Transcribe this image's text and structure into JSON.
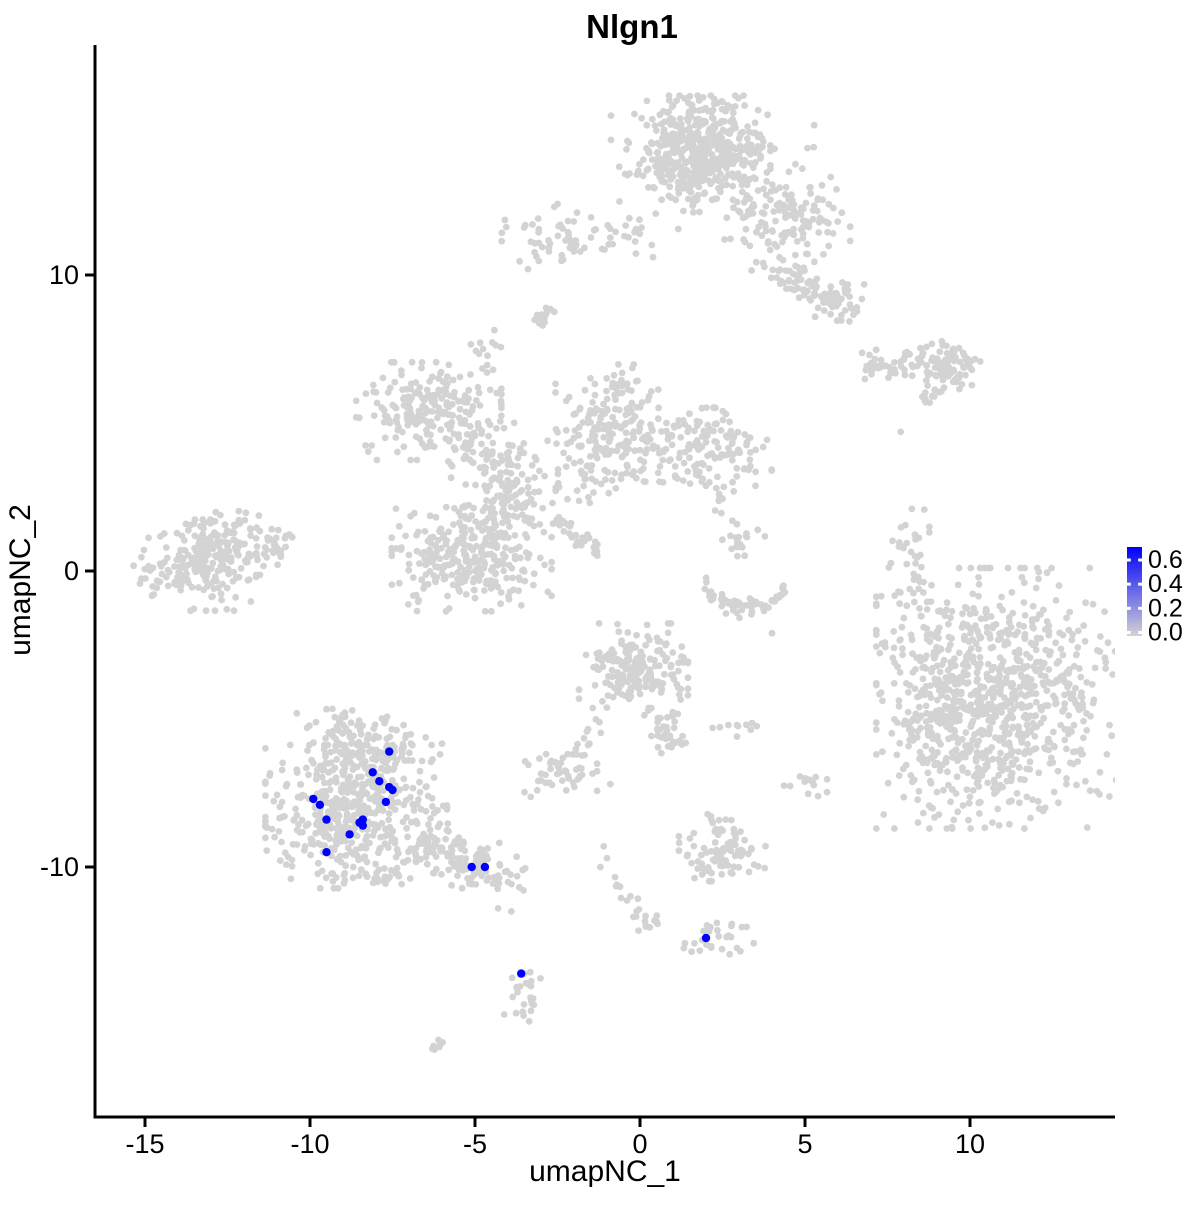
{
  "figure": {
    "title": "Nlgn1",
    "x_axis": {
      "label": "umapNC_1",
      "tick_values": [
        -15,
        -10,
        -5,
        0,
        5,
        10
      ],
      "tick_labels": [
        "-15",
        "-10",
        "-5",
        "0",
        "5",
        "10"
      ]
    },
    "y_axis": {
      "label": "umapNC_2",
      "tick_values": [
        10,
        0,
        -10
      ],
      "tick_labels": [
        "10",
        "0",
        "-10"
      ]
    },
    "legend": {
      "tick_values": [
        0.6,
        0.4,
        0.2,
        0.0
      ],
      "tick_labels": [
        "0.6",
        "0.4",
        "0.2",
        "0.0"
      ],
      "min": 0.0,
      "max": 0.6,
      "low_color": "#D3D3D3",
      "high_color": "#0000FF"
    }
  },
  "chart_data": {
    "type": "scatter",
    "title": "Nlgn1",
    "xlabel": "umapNC_1",
    "ylabel": "umapNC_2",
    "xlim": [
      -16.5,
      14.4
    ],
    "ylim": [
      -18.4,
      17.8
    ],
    "x_ticks": [
      -15,
      -10,
      -5,
      0,
      5,
      10
    ],
    "y_ticks": [
      -10,
      0,
      10
    ],
    "grid": false,
    "legend_position": "right",
    "legend_values": [
      0.6,
      0.4,
      0.2,
      0.0
    ],
    "point_color_low": "#D3D3D3",
    "point_color_high": "#0000FF",
    "seed": 42,
    "background_clusters": [
      {
        "shape": "gauss",
        "cx": 1.75,
        "cy": 14.3,
        "rx": 1.0,
        "ry": 0.8,
        "n": 430
      },
      {
        "shape": "gauss",
        "cx": 2.2,
        "cy": 13.4,
        "rx": 1.4,
        "ry": 1.0,
        "n": 130
      },
      {
        "shape": "gauss",
        "cx": 4.5,
        "cy": 11.8,
        "rx": 0.85,
        "ry": 0.75,
        "n": 115
      },
      {
        "shape": "line",
        "x1": 4.1,
        "y1": 10.3,
        "x2": 6.1,
        "y2": 8.9,
        "w": 0.35,
        "n": 65
      },
      {
        "shape": "gauss",
        "cx": 6.1,
        "cy": 9.1,
        "rx": 0.4,
        "ry": 0.35,
        "n": 30
      },
      {
        "shape": "gauss",
        "cx": -2.1,
        "cy": 11.3,
        "rx": 0.95,
        "ry": 0.5,
        "n": 65
      },
      {
        "shape": "gauss",
        "cx": 0.0,
        "cy": 11.1,
        "rx": 0.5,
        "ry": 0.3,
        "n": 8
      },
      {
        "shape": "line",
        "x1": -3.15,
        "y1": 8.35,
        "x2": -2.65,
        "y2": 8.85,
        "w": 0.12,
        "n": 18
      },
      {
        "shape": "gauss",
        "cx": -4.6,
        "cy": 7.3,
        "rx": 0.28,
        "ry": 0.38,
        "n": 14
      },
      {
        "shape": "gauss",
        "cx": 9.4,
        "cy": 7.0,
        "rx": 0.55,
        "ry": 0.4,
        "n": 85
      },
      {
        "shape": "line",
        "x1": 6.7,
        "y1": 6.9,
        "x2": 8.7,
        "y2": 7.15,
        "w": 0.22,
        "n": 45
      },
      {
        "shape": "line",
        "x1": 8.6,
        "y1": 5.65,
        "x2": 9.1,
        "y2": 6.15,
        "w": 0.12,
        "n": 12
      },
      {
        "shape": "dots",
        "pts": [
          [
            7.9,
            4.7
          ]
        ]
      },
      {
        "shape": "gauss",
        "cx": -6.4,
        "cy": 5.4,
        "rx": 1.0,
        "ry": 0.75,
        "n": 220
      },
      {
        "shape": "line",
        "x1": -5.4,
        "y1": 4.4,
        "x2": -3.9,
        "y2": 3.4,
        "w": 0.5,
        "n": 70
      },
      {
        "shape": "gauss",
        "cx": -4.1,
        "cy": 2.45,
        "rx": 0.55,
        "ry": 0.6,
        "n": 80
      },
      {
        "shape": "gauss",
        "cx": -5.1,
        "cy": 0.4,
        "rx": 1.1,
        "ry": 0.8,
        "n": 300
      },
      {
        "shape": "line",
        "x1": -2.6,
        "y1": 1.75,
        "x2": -1.2,
        "y2": 0.55,
        "w": 0.1,
        "n": 38
      },
      {
        "shape": "gauss",
        "cx": -2.5,
        "cy": 3.1,
        "rx": 0.75,
        "ry": 0.55,
        "n": 32
      },
      {
        "shape": "gauss",
        "cx": -0.8,
        "cy": 5.0,
        "rx": 0.8,
        "ry": 0.9,
        "n": 170
      },
      {
        "shape": "gauss",
        "cx": -1.0,
        "cy": 3.4,
        "rx": 0.5,
        "ry": 0.5,
        "n": 25
      },
      {
        "shape": "gauss",
        "cx": 1.9,
        "cy": 4.2,
        "rx": 0.95,
        "ry": 0.6,
        "n": 150
      },
      {
        "shape": "line",
        "x1": 2.4,
        "y1": 3.0,
        "x2": 2.6,
        "y2": 1.8,
        "w": 0.2,
        "n": 8
      },
      {
        "shape": "gauss",
        "cx": 3.0,
        "cy": 0.9,
        "rx": 0.4,
        "ry": 0.35,
        "n": 18
      },
      {
        "shape": "line",
        "x1": 1.9,
        "y1": -0.2,
        "x2": 4.4,
        "y2": -0.7,
        "w": 0.15,
        "bend": -0.85,
        "n": 60
      },
      {
        "shape": "dots",
        "pts": [
          [
            4.0,
            -2.1
          ]
        ]
      },
      {
        "shape": "gauss",
        "cx": -13.5,
        "cy": 0.2,
        "rx": 0.85,
        "ry": 0.7,
        "n": 180
      },
      {
        "shape": "gauss",
        "cx": -12.3,
        "cy": 1.0,
        "rx": 0.8,
        "ry": 0.55,
        "n": 80
      },
      {
        "shape": "line",
        "x1": -11.5,
        "y1": 0.9,
        "x2": -10.7,
        "y2": 0.6,
        "w": 0.3,
        "n": 20
      },
      {
        "shape": "gauss",
        "cx": 8.2,
        "cy": 0.1,
        "rx": 0.4,
        "ry": 1.1,
        "n": 50
      },
      {
        "shape": "gauss",
        "cx": 10.9,
        "cy": -4.3,
        "rx": 1.7,
        "ry": 2.0,
        "n": 780
      },
      {
        "shape": "gauss",
        "cx": 9.5,
        "cy": -5.2,
        "rx": 0.9,
        "ry": 1.5,
        "n": 150
      },
      {
        "shape": "gauss",
        "cx": 8.7,
        "cy": -3.8,
        "rx": 0.5,
        "ry": 1.0,
        "n": 20
      },
      {
        "shape": "gauss",
        "cx": -0.2,
        "cy": -3.2,
        "rx": 0.75,
        "ry": 0.65,
        "n": 200
      },
      {
        "shape": "line",
        "x1": 0.5,
        "y1": -4.6,
        "x2": 1.1,
        "y2": -6.0,
        "w": 0.25,
        "n": 40
      },
      {
        "shape": "line",
        "x1": -1.3,
        "y1": -5.0,
        "x2": -2.0,
        "y2": -6.3,
        "w": 0.18,
        "n": 13
      },
      {
        "shape": "gauss",
        "cx": -2.4,
        "cy": -6.8,
        "rx": 0.5,
        "ry": 0.4,
        "n": 48
      },
      {
        "shape": "dots",
        "pts": [
          [
            -0.9,
            -7.2
          ]
        ]
      },
      {
        "shape": "gauss",
        "cx": 2.9,
        "cy": -5.2,
        "rx": 0.4,
        "ry": 0.18,
        "n": 9
      },
      {
        "shape": "dots",
        "pts": [
          [
            2.2,
            -5.3
          ]
        ]
      },
      {
        "shape": "gauss",
        "cx": 4.9,
        "cy": -7.4,
        "rx": 0.35,
        "ry": 0.35,
        "n": 13
      },
      {
        "shape": "gauss",
        "cx": 2.4,
        "cy": -8.6,
        "rx": 0.22,
        "ry": 0.3,
        "n": 11
      },
      {
        "shape": "gauss",
        "cx": 2.5,
        "cy": -9.6,
        "rx": 0.6,
        "ry": 0.4,
        "n": 75
      },
      {
        "shape": "dots",
        "pts": [
          [
            -1.1,
            -9.3
          ],
          [
            -1.0,
            -9.7
          ],
          [
            -1.2,
            -10.0
          ]
        ]
      },
      {
        "shape": "line",
        "x1": -0.7,
        "y1": -10.3,
        "x2": 0.1,
        "y2": -12.2,
        "w": 0.12,
        "n": 15
      },
      {
        "shape": "gauss",
        "cx": 0.35,
        "cy": -11.9,
        "rx": 0.25,
        "ry": 0.2,
        "n": 7
      },
      {
        "shape": "gauss",
        "cx": 2.35,
        "cy": -12.5,
        "rx": 0.55,
        "ry": 0.35,
        "n": 28
      },
      {
        "shape": "gauss",
        "cx": -3.5,
        "cy": -14.5,
        "rx": 0.28,
        "ry": 0.65,
        "n": 24
      },
      {
        "shape": "line",
        "x1": -6.3,
        "y1": -16.15,
        "x2": -6.0,
        "y2": -15.9,
        "w": 0.08,
        "n": 7
      },
      {
        "shape": "dots",
        "pts": [
          [
            -4.3,
            -11.4
          ],
          [
            -3.9,
            -11.5
          ]
        ]
      },
      {
        "shape": "gauss",
        "cx": -8.6,
        "cy": -8.3,
        "rx": 1.25,
        "ry": 1.1,
        "n": 450
      },
      {
        "shape": "gauss",
        "cx": -8.2,
        "cy": -6.2,
        "rx": 1.0,
        "ry": 0.7,
        "n": 160
      },
      {
        "shape": "gauss",
        "cx": -9.1,
        "cy": -5.2,
        "rx": 0.45,
        "ry": 0.3,
        "n": 20
      },
      {
        "shape": "line",
        "x1": -6.8,
        "y1": -9.0,
        "x2": -4.6,
        "y2": -10.0,
        "w": 0.4,
        "n": 110
      },
      {
        "shape": "gauss",
        "cx": -4.4,
        "cy": -10.2,
        "rx": 0.45,
        "ry": 0.3,
        "n": 35
      },
      {
        "shape": "gauss",
        "cx": -7.8,
        "cy": -10.4,
        "rx": 0.7,
        "ry": 0.2,
        "n": 7
      },
      {
        "shape": "dots",
        "pts": [
          [
            -2.8,
            4.4
          ],
          [
            -2.0,
            4.5
          ],
          [
            2.4,
            2.6
          ],
          [
            2.8,
            1.7
          ],
          [
            8.7,
            -2.3
          ]
        ]
      }
    ],
    "highlighted_points": [
      {
        "x": -7.6,
        "y": -6.1,
        "value": 0.6
      },
      {
        "x": -8.1,
        "y": -6.8,
        "value": 0.6
      },
      {
        "x": -7.9,
        "y": -7.1,
        "value": 0.6
      },
      {
        "x": -7.6,
        "y": -7.3,
        "value": 0.6
      },
      {
        "x": -7.5,
        "y": -7.4,
        "value": 0.6
      },
      {
        "x": -7.7,
        "y": -7.8,
        "value": 0.6
      },
      {
        "x": -9.9,
        "y": -7.7,
        "value": 0.6
      },
      {
        "x": -9.7,
        "y": -7.9,
        "value": 0.6
      },
      {
        "x": -9.5,
        "y": -8.4,
        "value": 0.6
      },
      {
        "x": -8.4,
        "y": -8.4,
        "value": 0.6
      },
      {
        "x": -8.5,
        "y": -8.5,
        "value": 0.6
      },
      {
        "x": -8.4,
        "y": -8.6,
        "value": 0.6
      },
      {
        "x": -8.8,
        "y": -8.9,
        "value": 0.6
      },
      {
        "x": -9.5,
        "y": -9.5,
        "value": 0.6
      },
      {
        "x": -5.1,
        "y": -10.0,
        "value": 0.6
      },
      {
        "x": -4.7,
        "y": -10.0,
        "value": 0.6
      },
      {
        "x": 2.0,
        "y": -12.4,
        "value": 0.6
      },
      {
        "x": -3.6,
        "y": -13.6,
        "value": 0.6
      }
    ]
  }
}
